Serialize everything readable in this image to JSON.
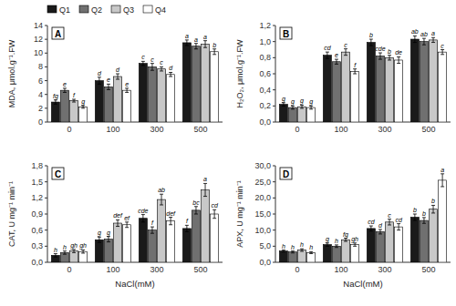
{
  "chart_data": [
    {
      "type": "bar",
      "title": "A",
      "categories": [
        "0",
        "100",
        "300",
        "500"
      ],
      "ylabel": "MDA, μmol.g⁻¹.FW",
      "series": [
        {
          "name": "Q1",
          "color": "#1a1a1a",
          "values": [
            2.9,
            6.0,
            8.5,
            11.5
          ],
          "errors": [
            0.3,
            0.5,
            0.3,
            0.4
          ],
          "letters": [
            "fg",
            "d",
            "c",
            "a"
          ]
        },
        {
          "name": "Q2",
          "color": "#707070",
          "values": [
            4.6,
            5.1,
            8.0,
            11.0
          ],
          "errors": [
            0.3,
            0.4,
            0.5,
            0.4
          ],
          "letters": [
            "e",
            "e",
            "c",
            "a"
          ]
        },
        {
          "name": "Q3",
          "color": "#c8c8c8",
          "values": [
            3.1,
            6.6,
            7.7,
            11.3
          ],
          "errors": [
            0.2,
            0.4,
            0.3,
            0.5
          ],
          "letters": [
            "f",
            "d",
            "c",
            "a"
          ]
        },
        {
          "name": "Q4",
          "color": "#ffffff",
          "values": [
            2.2,
            4.6,
            6.9,
            10.2
          ],
          "errors": [
            0.2,
            0.3,
            0.3,
            0.4
          ],
          "letters": [
            "g",
            "e",
            "d",
            "b"
          ]
        }
      ],
      "ylim": [
        0,
        14
      ],
      "yticks": [
        0,
        2,
        4,
        6,
        8,
        10,
        12,
        14
      ],
      "grid": false,
      "legend": "top"
    },
    {
      "type": "bar",
      "title": "B",
      "categories": [
        "0",
        "100",
        "300",
        "500"
      ],
      "ylabel": "H₂O₂, μmol.g⁻¹.FW",
      "series": [
        {
          "color": "#1a1a1a",
          "values": [
            0.22,
            0.83,
            0.99,
            1.03
          ],
          "errors": [
            0.02,
            0.04,
            0.04,
            0.04
          ],
          "letters": [
            "g",
            "cd",
            "b",
            "ab"
          ]
        },
        {
          "color": "#707070",
          "values": [
            0.18,
            0.75,
            0.82,
            1.0
          ],
          "errors": [
            0.02,
            0.03,
            0.04,
            0.04
          ],
          "letters": [
            "g",
            "e",
            "cde",
            "ab"
          ]
        },
        {
          "color": "#c8c8c8",
          "values": [
            0.19,
            0.87,
            0.8,
            1.02
          ],
          "errors": [
            0.02,
            0.04,
            0.03,
            0.03
          ],
          "letters": [
            "g",
            "c",
            "b",
            "a"
          ]
        },
        {
          "color": "#ffffff",
          "values": [
            0.18,
            0.63,
            0.77,
            0.87
          ],
          "errors": [
            0.02,
            0.03,
            0.04,
            0.03
          ],
          "letters": [
            "g",
            "f",
            "de",
            "c"
          ]
        }
      ],
      "ylim": [
        0,
        1.2
      ],
      "yticks": [
        {
          "value": 0,
          "label": "0,0"
        },
        {
          "value": 0.2,
          "label": "0,2"
        },
        {
          "value": 0.4,
          "label": "0,4"
        },
        {
          "value": 0.6,
          "label": "0,6"
        },
        {
          "value": 0.8,
          "label": "0,8"
        },
        {
          "value": 1.0,
          "label": "1,0"
        },
        {
          "value": 1.2,
          "label": "1,2"
        }
      ],
      "grid": false
    },
    {
      "type": "bar",
      "title": "C",
      "categories": [
        "0",
        "100",
        "300",
        "500"
      ],
      "ylabel": "CAT, U mg⁻¹ min⁻¹",
      "xlabel": "NaCl(mM)",
      "series": [
        {
          "color": "#1a1a1a",
          "values": [
            0.13,
            0.42,
            0.82,
            0.63
          ],
          "errors": [
            0.03,
            0.05,
            0.07,
            0.06
          ],
          "letters": [
            "h",
            "g",
            "cde",
            "f"
          ]
        },
        {
          "color": "#707070",
          "values": [
            0.18,
            0.43,
            0.6,
            0.97
          ],
          "errors": [
            0.03,
            0.05,
            0.06,
            0.07
          ],
          "letters": [
            "h",
            "g",
            "f",
            "bc"
          ]
        },
        {
          "color": "#c8c8c8",
          "values": [
            0.21,
            0.73,
            1.17,
            1.35
          ],
          "errors": [
            0.03,
            0.06,
            0.1,
            0.12
          ],
          "letters": [
            "gh",
            "def",
            "ab",
            "a"
          ]
        },
        {
          "color": "#ffffff",
          "values": [
            0.2,
            0.7,
            0.77,
            0.9
          ],
          "errors": [
            0.03,
            0.05,
            0.07,
            0.08
          ],
          "letters": [
            "gh",
            "ef",
            "def",
            "cd"
          ]
        }
      ],
      "ylim": [
        0,
        1.8
      ],
      "yticks": [
        {
          "value": 0,
          "label": "0,0"
        },
        {
          "value": 0.3,
          "label": "0,3"
        },
        {
          "value": 0.6,
          "label": "0,6"
        },
        {
          "value": 0.9,
          "label": "0,9"
        },
        {
          "value": 1.2,
          "label": "1,2"
        },
        {
          "value": 1.5,
          "label": "1,5"
        },
        {
          "value": 1.8,
          "label": "1,8"
        }
      ],
      "grid": false
    },
    {
      "type": "bar",
      "title": "D",
      "categories": [
        "0",
        "100",
        "300",
        "500"
      ],
      "ylabel": "APX, U mg⁻¹ min⁻¹",
      "xlabel": "NaCl(mM)",
      "series": [
        {
          "color": "#1a1a1a",
          "values": [
            3.5,
            5.5,
            10.5,
            14.0
          ],
          "errors": [
            0.3,
            0.5,
            0.8,
            1.0
          ],
          "letters": [
            "h",
            "g",
            "cd",
            "b"
          ]
        },
        {
          "color": "#707070",
          "values": [
            3.2,
            5.0,
            9.5,
            13.0
          ],
          "errors": [
            0.3,
            0.4,
            0.7,
            0.9
          ],
          "letters": [
            "h",
            "h",
            "d",
            "b"
          ]
        },
        {
          "color": "#c8c8c8",
          "values": [
            3.8,
            7.0,
            12.5,
            16.5
          ],
          "errors": [
            0.4,
            0.5,
            0.9,
            1.2
          ],
          "letters": [
            "h",
            "fg",
            "c",
            "b"
          ]
        },
        {
          "color": "#ffffff",
          "values": [
            3.0,
            5.5,
            11.0,
            25.5
          ],
          "errors": [
            0.3,
            0.5,
            1.0,
            2.0
          ],
          "letters": [
            "h",
            "gh",
            "cd",
            "a"
          ]
        }
      ],
      "ylim": [
        0,
        30
      ],
      "yticks": [
        {
          "value": 0,
          "label": "0,0"
        },
        {
          "value": 5,
          "label": "5,0"
        },
        {
          "value": 10,
          "label": "10,0"
        },
        {
          "value": 15,
          "label": "15,0"
        },
        {
          "value": 20,
          "label": "20,0"
        },
        {
          "value": 25,
          "label": "25,0"
        },
        {
          "value": 30,
          "label": "30,0"
        }
      ],
      "grid": false
    }
  ]
}
